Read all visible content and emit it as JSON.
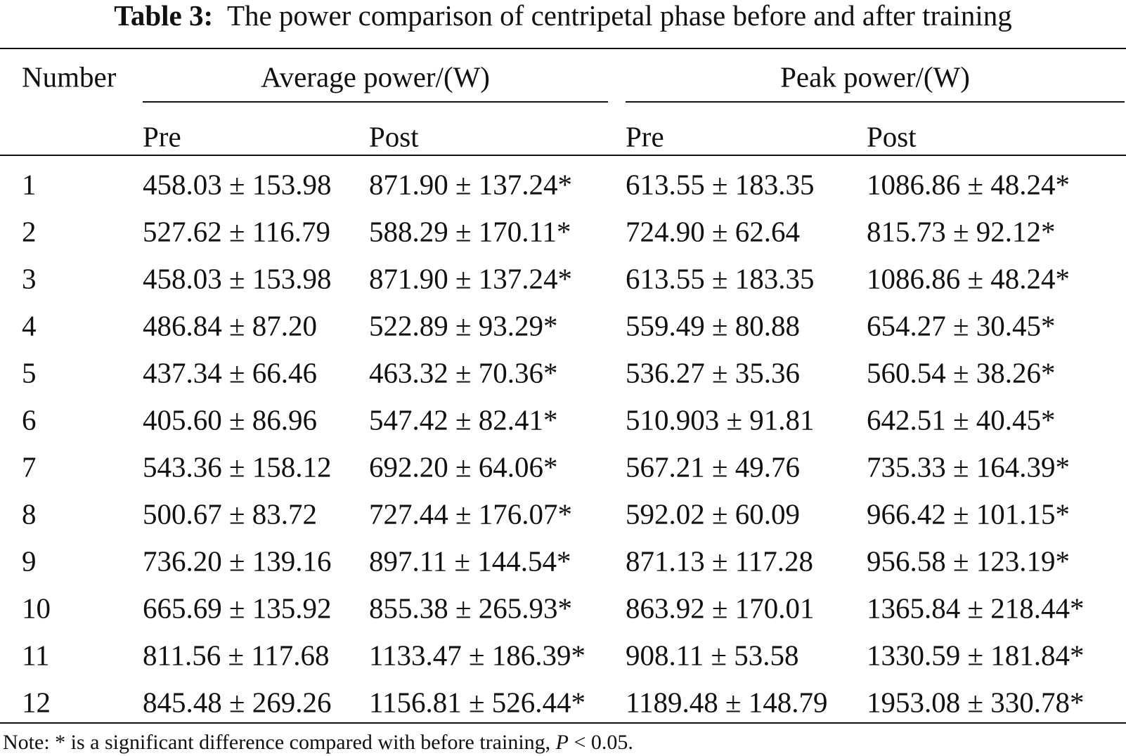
{
  "caption": {
    "label": "Table 3:",
    "text": "The power comparison of centripetal phase before and after training"
  },
  "table": {
    "group_headers": [
      "Number",
      "Average power/(W)",
      "Peak power/(W)"
    ],
    "sub_headers": [
      "Pre",
      "Post",
      "Pre",
      "Post"
    ],
    "rows": [
      [
        "1",
        "458.03 ± 153.98",
        "871.90 ± 137.24*",
        "613.55 ± 183.35",
        "1086.86 ± 48.24*"
      ],
      [
        "2",
        "527.62 ± 116.79",
        "588.29 ± 170.11*",
        "724.90 ± 62.64",
        "815.73 ± 92.12*"
      ],
      [
        "3",
        "458.03 ± 153.98",
        "871.90 ± 137.24*",
        "613.55 ± 183.35",
        "1086.86 ± 48.24*"
      ],
      [
        "4",
        "486.84 ± 87.20",
        "522.89 ± 93.29*",
        "559.49 ± 80.88",
        "654.27 ± 30.45*"
      ],
      [
        "5",
        "437.34 ± 66.46",
        "463.32 ± 70.36*",
        "536.27 ± 35.36",
        "560.54 ± 38.26*"
      ],
      [
        "6",
        "405.60 ± 86.96",
        "547.42 ± 82.41*",
        "510.903 ± 91.81",
        "642.51 ± 40.45*"
      ],
      [
        "7",
        "543.36 ± 158.12",
        "692.20 ± 64.06*",
        "567.21 ± 49.76",
        "735.33 ± 164.39*"
      ],
      [
        "8",
        "500.67 ± 83.72",
        "727.44 ± 176.07*",
        "592.02 ± 60.09",
        "966.42 ± 101.15*"
      ],
      [
        "9",
        "736.20 ± 139.16",
        "897.11 ± 144.54*",
        "871.13 ± 117.28",
        "956.58 ± 123.19*"
      ],
      [
        "10",
        "665.69 ± 135.92",
        "855.38 ± 265.93*",
        "863.92 ± 170.01",
        "1365.84 ± 218.44*"
      ],
      [
        "11",
        "811.56 ± 117.68",
        "1133.47 ± 186.39*",
        "908.11 ± 53.58",
        "1330.59 ± 181.84*"
      ],
      [
        "12",
        "845.48 ± 269.26",
        "1156.81 ± 526.44*",
        "1189.48 ± 148.79",
        "1953.08 ± 330.78*"
      ]
    ]
  },
  "note": {
    "prefix": "Note: * is a significant difference compared with before training,",
    "symbol": "P",
    "suffix": "< 0.05."
  }
}
